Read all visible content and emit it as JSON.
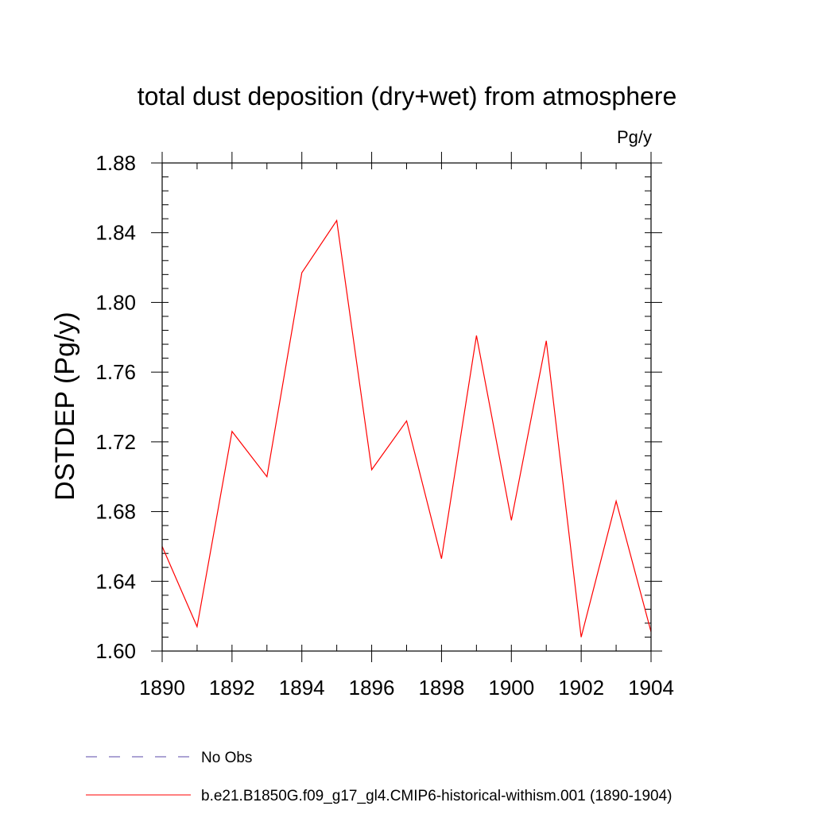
{
  "chart_data": {
    "type": "line",
    "title": "total dust deposition (dry+wet) from atmosphere",
    "units": "Pg/y",
    "ylabel": "DSTDEP  (Pg/y)",
    "xlabel": "",
    "xlim": [
      1890,
      1904
    ],
    "ylim": [
      1.6,
      1.88
    ],
    "x_ticks": [
      "1890",
      "1892",
      "1894",
      "1896",
      "1898",
      "1900",
      "1902",
      "1904"
    ],
    "x_tick_values": [
      1890,
      1892,
      1894,
      1896,
      1898,
      1900,
      1902,
      1904
    ],
    "x_minor_step": 1,
    "y_ticks": [
      "1.60",
      "1.64",
      "1.68",
      "1.72",
      "1.76",
      "1.80",
      "1.84",
      "1.88"
    ],
    "y_tick_values": [
      1.6,
      1.64,
      1.68,
      1.72,
      1.76,
      1.8,
      1.84,
      1.88
    ],
    "y_minor_step": 0.008,
    "grid": false,
    "legend_position": "bottom-left",
    "series": [
      {
        "name": "b.e21.B1850G.f09_g17_gl4.CMIP6-historical-withism.001 (1890-1904)",
        "color": "#ff0000",
        "style": "solid",
        "x": [
          1890,
          1891,
          1892,
          1893,
          1894,
          1895,
          1896,
          1897,
          1898,
          1899,
          1900,
          1901,
          1902,
          1903,
          1904
        ],
        "y": [
          1.66,
          1.614,
          1.726,
          1.7,
          1.817,
          1.847,
          1.704,
          1.732,
          1.653,
          1.781,
          1.675,
          1.778,
          1.608,
          1.686,
          1.611
        ]
      }
    ],
    "legend": [
      {
        "label": "No Obs",
        "color": "#5a4aa8",
        "style": "dashed"
      },
      {
        "label": "b.e21.B1850G.f09_g17_gl4.CMIP6-historical-withism.001 (1890-1904)",
        "color": "#ff0000",
        "style": "solid"
      }
    ]
  }
}
